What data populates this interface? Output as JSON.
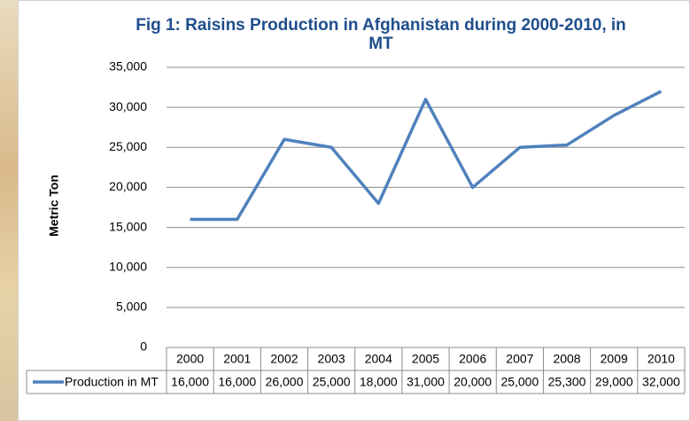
{
  "chart_data": {
    "type": "line",
    "title": "Fig 1: Raisins Production in Afghanistan during 2000-2010, in MT",
    "y_label": "Metric Ton",
    "categories": [
      "2000",
      "2001",
      "2002",
      "2003",
      "2004",
      "2005",
      "2006",
      "2007",
      "2008",
      "2009",
      "2010"
    ],
    "series": [
      {
        "name": "Production in MT",
        "color": "#4f81bd",
        "values": [
          16000,
          16000,
          26000,
          25000,
          18000,
          31000,
          20000,
          25000,
          25300,
          29000,
          32000
        ],
        "value_labels": [
          "16,000",
          "16,000",
          "26,000",
          "25,000",
          "18,000",
          "31,000",
          "20,000",
          "25,000",
          "25,300",
          "29,000",
          "32,000"
        ]
      }
    ],
    "ylim": [
      0,
      35000
    ],
    "yticks": [
      0,
      {
        "value": 5000,
        "label": "5,000"
      },
      {
        "value": 10000,
        "label": "10,000"
      },
      {
        "value": 15000,
        "label": "15,000"
      },
      {
        "value": 20000,
        "label": "20,000"
      },
      {
        "value": 25000,
        "label": "25,000"
      },
      {
        "value": 30000,
        "label": "30,000"
      },
      {
        "value": 35000,
        "label": "35,000"
      }
    ],
    "grid": true
  }
}
